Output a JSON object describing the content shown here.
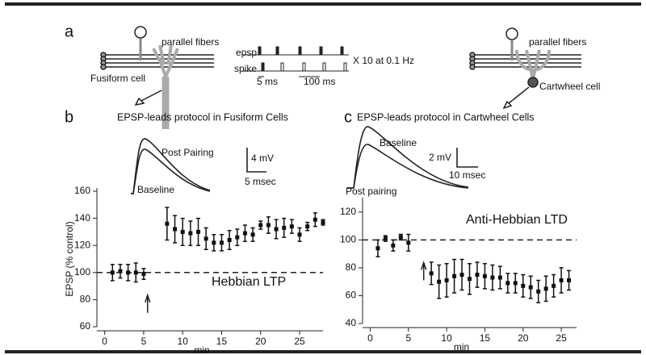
{
  "panel_labels": {
    "a": "a",
    "b": "b",
    "c": "c"
  },
  "diagram": {
    "left_fibers": "parallel fibers",
    "left_cell": "Fusiform cell",
    "epsp": "epsp",
    "spike": "spike",
    "repeat": "X 10 at 0.1 Hz",
    "short_interval": "5 ms",
    "long_interval": "100 ms",
    "right_fibers": "parallel fibers",
    "right_cell": "Cartwheel cell"
  },
  "chart_data": [
    {
      "type": "scatter",
      "title": "EPSP-leads protocol in Fusiform Cells",
      "ylabel": "EPSP (% control)",
      "xlabel": "min",
      "annotation": "Hebbian LTP",
      "trace_labels": {
        "after": "Post Pairing",
        "before": "Baseline",
        "scale_y": "4 mV",
        "scale_x": "5 msec"
      },
      "x": [
        1,
        2,
        3,
        4,
        5,
        8,
        9,
        10,
        11,
        12,
        13,
        14,
        15,
        16,
        17,
        18,
        19,
        20,
        21,
        22,
        23,
        24,
        25,
        26,
        27,
        28
      ],
      "values": [
        100,
        101,
        100,
        100,
        99,
        136,
        132,
        130,
        129,
        130,
        125,
        122,
        122,
        124,
        126,
        129,
        128,
        135,
        135,
        132,
        133,
        134,
        128,
        134,
        139,
        137
      ],
      "errors": [
        6,
        5,
        6,
        7,
        4,
        12,
        10,
        10,
        9,
        10,
        8,
        6,
        6,
        7,
        6,
        6,
        5,
        3,
        6,
        7,
        7,
        5,
        5,
        3,
        5,
        2
      ],
      "color": "#111111",
      "xlim": [
        -1,
        28
      ],
      "ylim": [
        60,
        160
      ],
      "xticks": [
        0,
        5,
        10,
        15,
        20,
        25
      ],
      "yticks": [
        60,
        80,
        100,
        120,
        140,
        160
      ],
      "reference_line": 100,
      "arrow_x": 5.5
    },
    {
      "type": "scatter",
      "title": "EPSP-leads protocol in Cartwheel Cells",
      "xlabel": "min",
      "annotation": "Anti-Hebbian LTD",
      "trace_labels": {
        "before": "Baseline",
        "scale_y": "2 mV",
        "scale_x": "10 msec",
        "after": "Post pairing"
      },
      "x": [
        1,
        2,
        3,
        4,
        5,
        8,
        9,
        10,
        11,
        12,
        13,
        14,
        15,
        16,
        17,
        18,
        19,
        20,
        21,
        22,
        23,
        24,
        25,
        26
      ],
      "values": [
        94,
        101,
        96,
        102,
        98,
        76,
        70,
        71,
        74,
        75,
        72,
        75,
        74,
        73,
        73,
        69,
        69,
        67,
        66,
        63,
        65,
        67,
        71,
        71
      ],
      "errors": [
        6,
        2,
        4,
        2,
        6,
        8,
        12,
        12,
        12,
        11,
        11,
        9,
        9,
        9,
        8,
        7,
        7,
        8,
        8,
        8,
        9,
        8,
        9,
        7
      ],
      "color": "#111111",
      "xlim": [
        -1,
        27
      ],
      "ylim": [
        40,
        128
      ],
      "xticks": [
        0,
        5,
        10,
        15,
        20,
        25
      ],
      "yticks": [
        40,
        60,
        80,
        100,
        120
      ],
      "reference_line": 100,
      "arrow_x": 7
    }
  ]
}
